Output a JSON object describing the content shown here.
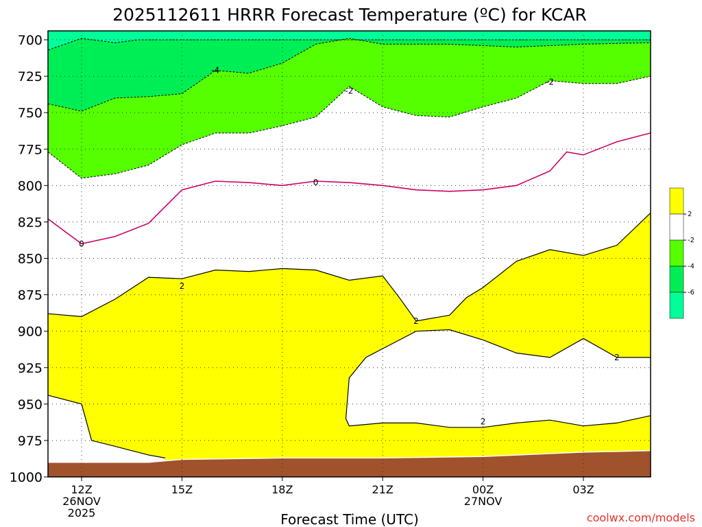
{
  "chart_data": {
    "type": "contour",
    "title": "2025112611 HRRR Forecast Temperature (ºC) for KCAR",
    "xlabel": "Forecast Time (UTC)",
    "ylabel": "",
    "credit": "coolwx.com/models",
    "x_ticks": [
      {
        "hour": 0,
        "lines": [
          "12Z",
          "26NOV",
          "2025"
        ]
      },
      {
        "hour": 3,
        "lines": [
          "15Z"
        ]
      },
      {
        "hour": 6,
        "lines": [
          "18Z"
        ]
      },
      {
        "hour": 9,
        "lines": [
          "21Z"
        ]
      },
      {
        "hour": 12,
        "lines": [
          "00Z",
          "27NOV"
        ]
      },
      {
        "hour": 15,
        "lines": [
          "03Z"
        ]
      }
    ],
    "xlim": [
      -1,
      17
    ],
    "y_ticks": [
      700,
      725,
      750,
      775,
      800,
      825,
      850,
      875,
      900,
      925,
      950,
      975,
      1000
    ],
    "ylim": [
      1000,
      695
    ],
    "colors": {
      "ground": "#a0522d",
      "above_2": "#ffff00",
      "range_0_2": "#ffffff",
      "range_neg2_0": "#ffffff",
      "range_neg4_neg2": "#55ff00",
      "range_neg6_neg4": "#00ee55",
      "below_neg6": "#00ff99",
      "zero_line": "#cc0066"
    },
    "colorbar": {
      "segments": [
        "#ffff00",
        "#ffffff",
        "#55ff00",
        "#00ee55",
        "#00ff99"
      ],
      "labels": [
        "2",
        "-2",
        "-4",
        "-6"
      ]
    },
    "contour_labels": [
      {
        "text": "-4",
        "hour": 4.0,
        "pressure": 721
      },
      {
        "text": "-2",
        "hour": 8.0,
        "pressure": 735
      },
      {
        "text": "-2",
        "hour": 14.0,
        "pressure": 729
      },
      {
        "text": "0",
        "hour": 0.0,
        "pressure": 840
      },
      {
        "text": "0",
        "hour": 7.0,
        "pressure": 798
      },
      {
        "text": "2",
        "hour": 3.0,
        "pressure": 869
      },
      {
        "text": "2",
        "hour": 10.0,
        "pressure": 893
      },
      {
        "text": "2",
        "hour": 16.0,
        "pressure": 918
      },
      {
        "text": "2",
        "hour": 12.0,
        "pressure": 962
      }
    ],
    "contours": {
      "ground_top": [
        [
          -1,
          990
        ],
        [
          2,
          990
        ],
        [
          3,
          988
        ],
        [
          6,
          987
        ],
        [
          9,
          987
        ],
        [
          12,
          986
        ],
        [
          15,
          983
        ],
        [
          17,
          982
        ]
      ],
      "neg6_boundary": [
        [
          -1,
          707
        ],
        [
          0,
          699
        ],
        [
          1,
          702
        ],
        [
          1.7,
          700
        ],
        [
          17,
          700
        ]
      ],
      "neg4_boundary": [
        [
          -1,
          744
        ],
        [
          0,
          749
        ],
        [
          1,
          740
        ],
        [
          2,
          739
        ],
        [
          3,
          737
        ],
        [
          4,
          721
        ],
        [
          5,
          723
        ],
        [
          6,
          716
        ],
        [
          7,
          703
        ],
        [
          8,
          699
        ],
        [
          9,
          703
        ],
        [
          11,
          703
        ],
        [
          12,
          704
        ],
        [
          13,
          705
        ],
        [
          14,
          704
        ],
        [
          15,
          703
        ],
        [
          17,
          702
        ]
      ],
      "neg2_boundary": [
        [
          -1,
          777
        ],
        [
          0,
          795
        ],
        [
          1,
          792
        ],
        [
          2,
          786
        ],
        [
          3,
          772
        ],
        [
          4,
          764
        ],
        [
          5,
          764
        ],
        [
          6,
          759
        ],
        [
          7,
          753
        ],
        [
          8,
          732
        ],
        [
          9,
          746
        ],
        [
          10,
          752
        ],
        [
          11,
          753
        ],
        [
          12,
          746
        ],
        [
          13,
          740
        ],
        [
          14,
          728
        ],
        [
          15,
          730
        ],
        [
          16,
          730
        ],
        [
          17,
          725
        ]
      ],
      "zero_line": [
        [
          -1,
          823
        ],
        [
          0,
          840
        ],
        [
          1,
          835
        ],
        [
          2,
          826
        ],
        [
          3,
          803
        ],
        [
          4,
          797
        ],
        [
          5,
          798
        ],
        [
          6,
          800
        ],
        [
          7,
          797
        ],
        [
          8,
          798
        ],
        [
          9,
          800
        ],
        [
          10,
          803
        ],
        [
          11,
          804
        ],
        [
          12,
          803
        ],
        [
          13,
          800
        ],
        [
          14,
          790
        ],
        [
          14.5,
          777
        ],
        [
          15,
          779
        ],
        [
          16,
          770
        ],
        [
          17,
          764
        ]
      ],
      "two_lower_left": [
        [
          -1,
          944
        ],
        [
          0,
          950
        ],
        [
          0.3,
          975
        ],
        [
          1,
          979
        ],
        [
          2,
          985
        ],
        [
          2.5,
          987
        ]
      ],
      "two_upper": [
        [
          -1,
          888
        ],
        [
          0,
          890
        ],
        [
          1,
          878
        ],
        [
          2,
          863
        ],
        [
          3,
          864
        ],
        [
          4,
          858
        ],
        [
          5,
          859
        ],
        [
          6,
          857
        ],
        [
          7,
          858
        ],
        [
          8,
          865
        ],
        [
          9,
          862
        ],
        [
          9.5,
          877
        ],
        [
          10,
          893
        ],
        [
          11,
          889
        ],
        [
          11.5,
          877
        ],
        [
          12,
          870
        ],
        [
          13,
          852
        ],
        [
          14,
          844
        ],
        [
          15,
          848
        ],
        [
          16,
          841
        ],
        [
          17,
          819
        ]
      ],
      "two_lower_boundary": [
        [
          17,
          918
        ],
        [
          16,
          918
        ],
        [
          15,
          905
        ],
        [
          14,
          918
        ],
        [
          13,
          915
        ],
        [
          12,
          906
        ],
        [
          11,
          899
        ],
        [
          10,
          900
        ],
        [
          9,
          912
        ],
        [
          8.5,
          918
        ],
        [
          8,
          932
        ],
        [
          7.9,
          960
        ],
        [
          8,
          965
        ],
        [
          9,
          963
        ],
        [
          10,
          963
        ],
        [
          11,
          966
        ],
        [
          12,
          966
        ],
        [
          13,
          963
        ],
        [
          14,
          961
        ],
        [
          15,
          965
        ],
        [
          16,
          963
        ],
        [
          17,
          958
        ]
      ]
    }
  }
}
